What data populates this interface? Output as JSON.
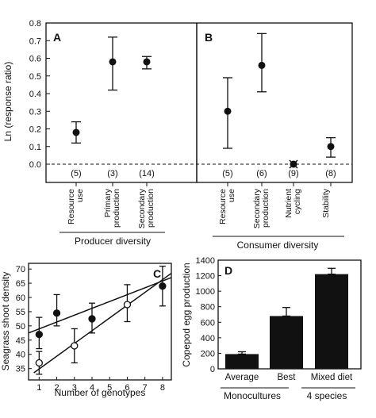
{
  "chart_data": [
    {
      "panel": "A",
      "type": "scatter",
      "ylabel": "Ln (response ratio)",
      "ylim": [
        -0.02,
        0.8
      ],
      "yticks": [
        "0.8",
        "0.7",
        "0.6",
        "0.5",
        "0.4",
        "0.3",
        "0.2",
        "0.1",
        "0.0"
      ],
      "categories": [
        "Resource\nuse",
        "Primary\nproduction",
        "Secondary\nproduction"
      ],
      "values": [
        0.18,
        0.58,
        0.58
      ],
      "err_low": [
        0.12,
        0.42,
        0.54
      ],
      "err_high": [
        0.24,
        0.72,
        0.61
      ],
      "counts": [
        "(5)",
        "(3)",
        "(14)"
      ],
      "group_label": "Producer diversity",
      "zero_line": "dashed"
    },
    {
      "panel": "B",
      "type": "scatter",
      "ylim": [
        -0.02,
        0.8
      ],
      "categories": [
        "Resource\nuse",
        "Secondary\nproduction",
        "Nutrient\ncycling",
        "Stability"
      ],
      "values": [
        0.3,
        0.56,
        0.0,
        0.1
      ],
      "err_low": [
        0.09,
        0.41,
        0.0,
        0.04
      ],
      "err_high": [
        0.49,
        0.74,
        0.0,
        0.15
      ],
      "counts": [
        "(5)",
        "(6)",
        "(9)",
        "(8)"
      ],
      "group_label": "Consumer diversity",
      "zero_line": "dashed"
    },
    {
      "panel": "C",
      "type": "scatter",
      "xlabel": "Number of genotypes",
      "ylabel": "Seagrass shoot density",
      "xticks": [
        "1",
        "2",
        "3",
        "4",
        "5",
        "6",
        "7",
        "8"
      ],
      "yticks": [
        "70",
        "65",
        "60",
        "55",
        "50",
        "45",
        "40",
        "35"
      ],
      "xlim": [
        0.4,
        8.5
      ],
      "ylim": [
        31,
        72
      ],
      "series": [
        {
          "marker": "filled",
          "x": [
            1,
            2,
            4,
            8
          ],
          "y": [
            47,
            54.5,
            52.5,
            64
          ],
          "err_low": [
            42,
            50,
            47.5,
            57
          ],
          "err_high": [
            53,
            61,
            58,
            71
          ],
          "fit": [
            [
              0.4,
              47.5
            ],
            [
              8.5,
              67
            ]
          ]
        },
        {
          "marker": "open",
          "x": [
            1,
            3,
            6
          ],
          "y": [
            37,
            43,
            57.5
          ],
          "err_low": [
            33,
            37,
            51.5
          ],
          "err_high": [
            41,
            49,
            64.5
          ],
          "fit": [
            [
              0.7,
              33.5
            ],
            [
              8.5,
              68.5
            ]
          ]
        }
      ]
    },
    {
      "panel": "D",
      "type": "bar",
      "ylabel": "Copepod egg production",
      "ylim": [
        0,
        1400
      ],
      "yticks": [
        "1400",
        "1200",
        "1000",
        "800",
        "600",
        "400",
        "200",
        "0"
      ],
      "categories": [
        "Average",
        "Best",
        "Mixed diet"
      ],
      "values": [
        190,
        680,
        1220
      ],
      "errors": [
        30,
        110,
        75
      ],
      "group_labels": [
        "Monocultures",
        "4 species"
      ]
    }
  ]
}
